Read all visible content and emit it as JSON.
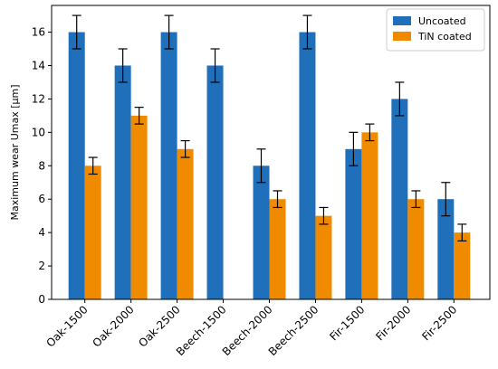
{
  "chart_data": {
    "type": "bar",
    "title": "",
    "xlabel": "",
    "ylabel": "Maximum wear Umax [μm]",
    "ylim": [
      0,
      17.6
    ],
    "yticks": [
      0,
      2,
      4,
      6,
      8,
      10,
      12,
      14,
      16
    ],
    "grid": false,
    "legend_position": "top-right",
    "categories": [
      "Oak-1500",
      "Oak-2000",
      "Oak-2500",
      "Beech-1500",
      "Beech-2000",
      "Beech-2500",
      "Fir-1500",
      "Fir-2000",
      "Fir-2500"
    ],
    "series": [
      {
        "name": "Uncoated",
        "color": "#1f6fba",
        "values": [
          16,
          14,
          16,
          14,
          8,
          16,
          9,
          12,
          6
        ],
        "errors": [
          1,
          1,
          1,
          1,
          1,
          1,
          1,
          1,
          1
        ]
      },
      {
        "name": "TiN coated",
        "color": "#f08b00",
        "values": [
          8,
          11,
          9,
          null,
          6,
          5,
          10,
          6,
          4
        ],
        "errors": [
          0.5,
          0.5,
          0.5,
          null,
          0.5,
          0.5,
          0.5,
          0.5,
          0.5
        ]
      }
    ]
  }
}
